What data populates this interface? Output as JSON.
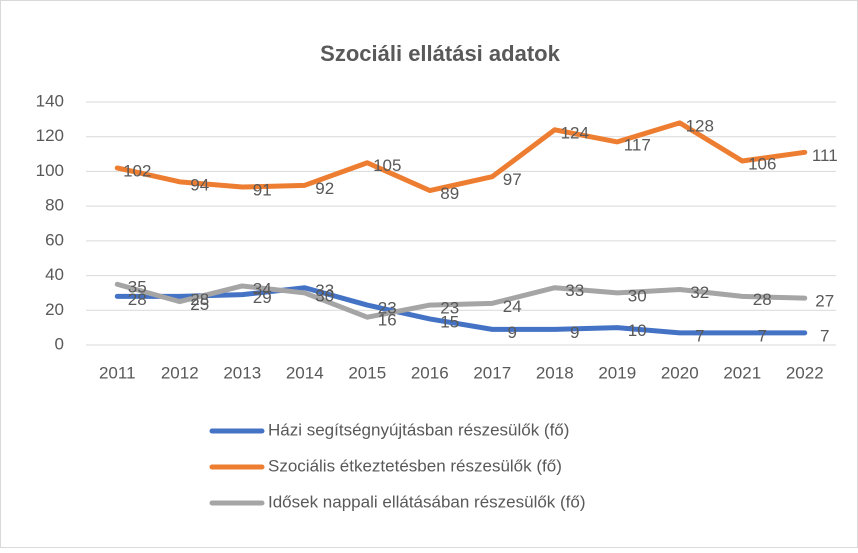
{
  "chart_data": {
    "type": "line",
    "title": "Szociáli ellátási adatok",
    "categories": [
      "2011",
      "2012",
      "2013",
      "2014",
      "2015",
      "2016",
      "2017",
      "2018",
      "2019",
      "2020",
      "2021",
      "2022"
    ],
    "series": [
      {
        "name": "Házi segítségnyújtásban részesülők (fő)",
        "color": "#4472c4",
        "values": [
          28,
          28,
          29,
          33,
          23,
          15,
          9,
          9,
          10,
          7,
          7,
          7
        ]
      },
      {
        "name": "Szociális étkeztetésben részesülők (fő)",
        "color": "#ed7d31",
        "values": [
          102,
          94,
          91,
          92,
          105,
          89,
          97,
          124,
          117,
          128,
          106,
          111
        ]
      },
      {
        "name": "Idősek nappali ellátásában részesülők (fő)",
        "color": "#a5a5a5",
        "values": [
          35,
          25,
          34,
          30,
          16,
          23,
          24,
          33,
          30,
          32,
          28,
          27
        ]
      }
    ],
    "ylim": [
      0,
      140
    ],
    "yticks": [
      0,
      20,
      40,
      60,
      80,
      100,
      120,
      140
    ],
    "grid": true,
    "legend": "bottom"
  }
}
